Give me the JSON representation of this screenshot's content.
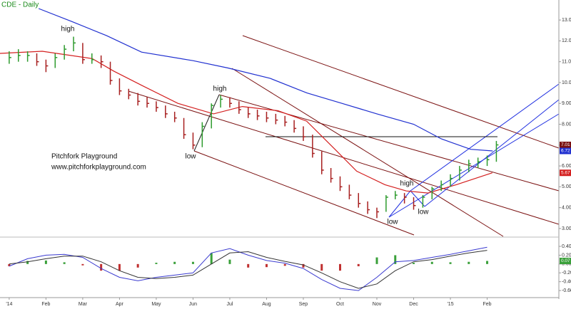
{
  "chart_data": [
    {
      "type": "ohlc",
      "title": "CDE - Daily",
      "x": [
        0,
        0.25,
        0.5,
        0.75,
        1,
        1.25,
        1.5,
        1.75,
        2,
        2.25,
        2.5,
        2.75,
        3,
        3.25,
        3.5,
        3.75,
        4,
        4.25,
        4.5,
        4.75,
        5,
        5.25,
        5.5,
        5.75,
        6,
        6.25,
        6.5,
        6.75,
        7,
        7.25,
        7.5,
        7.75,
        8,
        8.25,
        8.5,
        8.75,
        9,
        9.25,
        9.5,
        9.75,
        10,
        10.25,
        10.5,
        10.75,
        11,
        11.25,
        11.5,
        11.75,
        12,
        12.25,
        12.5,
        12.75,
        13,
        13.25
      ],
      "high": [
        11.5,
        11.6,
        11.5,
        11.4,
        11.1,
        11.4,
        11.8,
        12.2,
        11.9,
        11.4,
        11.3,
        11.0,
        10.2,
        9.7,
        9.5,
        9.3,
        9.1,
        8.9,
        8.6,
        8.3,
        7.6,
        8.1,
        9.0,
        9.4,
        9.3,
        9.1,
        8.8,
        8.7,
        8.6,
        8.5,
        8.4,
        8.2,
        7.9,
        7.5,
        6.7,
        5.9,
        5.5,
        5.1,
        4.7,
        4.3,
        4.0,
        4.6,
        4.8,
        4.7,
        4.5,
        4.6,
        5.0,
        5.3,
        5.6,
        6.0,
        6.3,
        6.4,
        6.5,
        7.2
      ],
      "low": [
        10.9,
        11.0,
        11.0,
        10.8,
        10.5,
        10.7,
        11.1,
        11.5,
        10.9,
        10.9,
        10.7,
        9.9,
        9.4,
        9.2,
        8.9,
        8.8,
        8.6,
        8.3,
        8.1,
        7.3,
        6.8,
        6.9,
        7.8,
        8.8,
        8.8,
        8.5,
        8.3,
        8.2,
        8.1,
        8.0,
        7.9,
        7.6,
        7.2,
        6.4,
        5.6,
        5.2,
        4.8,
        4.4,
        4.0,
        3.7,
        3.5,
        3.8,
        4.4,
        4.2,
        3.9,
        4.0,
        4.4,
        4.8,
        5.0,
        5.3,
        5.7,
        5.9,
        6.0,
        6.2
      ],
      "close": [
        11.2,
        11.3,
        11.3,
        11.0,
        10.8,
        11.2,
        11.6,
        11.9,
        11.1,
        11.1,
        11.0,
        10.1,
        9.6,
        9.4,
        9.1,
        9.0,
        8.8,
        8.5,
        8.3,
        7.5,
        7.0,
        7.9,
        8.9,
        9.2,
        9.0,
        8.7,
        8.5,
        8.4,
        8.3,
        8.2,
        8.1,
        7.8,
        7.4,
        6.6,
        5.8,
        5.4,
        5.0,
        4.6,
        4.2,
        3.9,
        3.8,
        4.5,
        4.6,
        4.5,
        4.1,
        4.5,
        4.9,
        5.1,
        5.4,
        5.8,
        6.1,
        6.2,
        6.3,
        7.01
      ],
      "up_color": "#2e9b2e",
      "down_color": "#a82020",
      "last_close_color": "#7a1010",
      "moving_averages": [
        {
          "color": "#d42020",
          "x": [
            -0.26,
            0.9,
            2.26,
            2.84,
            3.62,
            4.59,
            5.56,
            6.34,
            7.31,
            8.09,
            8.86,
            9.45,
            10.22,
            10.8,
            11.39,
            12.16,
            13.14
          ],
          "values": [
            11.4,
            11.5,
            11.15,
            10.55,
            9.85,
            9.0,
            8.5,
            8.85,
            8.65,
            8.15,
            6.8,
            5.75,
            5.1,
            4.8,
            4.7,
            5.1,
            5.67
          ]
        },
        {
          "color": "#2030d0",
          "x": [
            0.8,
            1.7,
            2.65,
            3.6,
            5.0,
            5.95,
            7.1,
            8.1,
            9.05,
            10.0,
            11.0,
            11.75,
            12.55,
            13.15
          ],
          "values": [
            13.55,
            12.93,
            12.25,
            11.46,
            11.05,
            10.7,
            10.2,
            9.5,
            9.0,
            8.5,
            8.0,
            7.3,
            6.8,
            6.72
          ]
        }
      ],
      "annotations": [
        "high",
        "high",
        "low",
        "high",
        "low",
        "low"
      ],
      "watermark": [
        "Pitchfork Playground",
        "www.pitchforkplayground.com"
      ],
      "xlim": [
        -0.25,
        14.95
      ],
      "ylim": [
        2.69,
        13.96
      ],
      "xticks": [
        {
          "value": 0,
          "label": "'14"
        },
        {
          "value": 1,
          "label": "Feb"
        },
        {
          "value": 2,
          "label": "Mar"
        },
        {
          "value": 3,
          "label": "Apr"
        },
        {
          "value": 4,
          "label": "May"
        },
        {
          "value": 5,
          "label": "Jun"
        },
        {
          "value": 6,
          "label": "Jul"
        },
        {
          "value": 7,
          "label": "Aug"
        },
        {
          "value": 8,
          "label": "Sep"
        },
        {
          "value": 9,
          "label": "Oct"
        },
        {
          "value": 10,
          "label": "Nov"
        },
        {
          "value": 11,
          "label": "Dec"
        },
        {
          "value": 12,
          "label": "'15"
        },
        {
          "value": 13,
          "label": "Feb"
        }
      ],
      "yticks": [
        {
          "value": 3,
          "label": "3.00"
        },
        {
          "value": 4,
          "label": "4.00"
        },
        {
          "value": 5,
          "label": "5.00"
        },
        {
          "value": 6,
          "label": "6.00"
        },
        {
          "value": 7,
          "label": "7.00"
        },
        {
          "value": 8,
          "label": "8.00"
        },
        {
          "value": 9,
          "label": "9.00"
        },
        {
          "value": 10,
          "label": "10.00"
        },
        {
          "value": 11,
          "label": "11.00"
        },
        {
          "value": 12,
          "label": "12.00"
        },
        {
          "value": 13,
          "label": "13.00"
        }
      ]
    },
    {
      "type": "macd",
      "x": [
        0,
        0.5,
        1,
        1.5,
        2,
        2.5,
        3,
        3.5,
        4,
        4.5,
        5,
        5.5,
        6,
        6.5,
        7,
        7.5,
        8,
        8.5,
        9,
        9.5,
        10,
        10.5,
        11,
        11.5,
        12,
        12.5,
        13
      ],
      "lines": [
        {
          "color": "#3a3ad0",
          "values": [
            -0.05,
            0.12,
            0.2,
            0.22,
            0.15,
            -0.1,
            -0.3,
            -0.38,
            -0.3,
            -0.25,
            -0.2,
            0.25,
            0.35,
            0.2,
            0.08,
            0.02,
            -0.1,
            -0.35,
            -0.55,
            -0.6,
            -0.3,
            0.05,
            0.08,
            0.15,
            0.22,
            0.3,
            0.38
          ]
        },
        {
          "color": "#333333",
          "values": [
            0.0,
            0.05,
            0.12,
            0.18,
            0.18,
            0.05,
            -0.15,
            -0.3,
            -0.33,
            -0.3,
            -0.25,
            0.0,
            0.25,
            0.28,
            0.15,
            0.06,
            -0.02,
            -0.2,
            -0.4,
            -0.55,
            -0.45,
            -0.15,
            0.05,
            0.1,
            0.18,
            0.25,
            0.31
          ]
        }
      ],
      "histogram": {
        "up_color": "#3aa03a",
        "down_color": "#c03030",
        "values": [
          -0.05,
          0.07,
          0.08,
          0.04,
          -0.03,
          -0.15,
          -0.15,
          -0.08,
          0.03,
          0.05,
          0.05,
          0.25,
          0.1,
          -0.08,
          -0.07,
          -0.04,
          -0.08,
          -0.15,
          -0.15,
          -0.05,
          0.15,
          0.2,
          0.03,
          0.05,
          0.04,
          0.05,
          0.07
        ]
      },
      "ylim": [
        -0.76,
        0.61
      ],
      "yticks": [
        {
          "value": 0.4,
          "label": "0.40"
        },
        {
          "value": 0.2,
          "label": "0.20"
        },
        {
          "value": 0,
          "label": "0.00"
        },
        {
          "value": -0.2,
          "label": "-0.20"
        },
        {
          "value": -0.4,
          "label": "-0.40"
        },
        {
          "value": -0.6,
          "label": "-0.60"
        }
      ]
    }
  ]
}
